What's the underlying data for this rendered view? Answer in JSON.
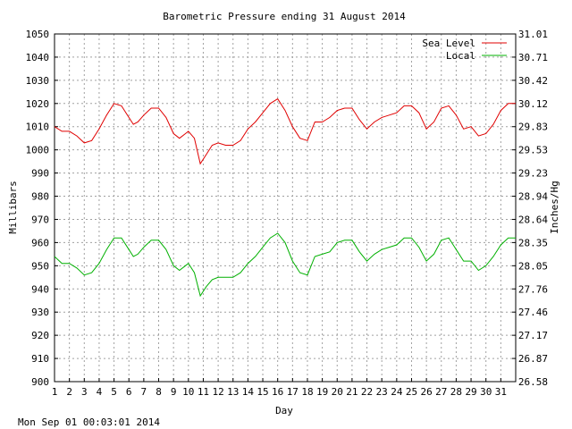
{
  "chart_data": {
    "type": "line",
    "title": "Barometric Pressure ending 31 August 2014",
    "xlabel": "Day",
    "ylabel": "Millibars",
    "y2label": "Inches/Hg",
    "xlim": [
      1,
      32
    ],
    "ylim": [
      900,
      1050
    ],
    "x_ticks": [
      "1",
      "2",
      "3",
      "4",
      "5",
      "6",
      "7",
      "8",
      "9",
      "10",
      "11",
      "12",
      "13",
      "14",
      "15",
      "16",
      "17",
      "18",
      "19",
      "20",
      "21",
      "22",
      "23",
      "24",
      "25",
      "26",
      "27",
      "28",
      "29",
      "30",
      "31"
    ],
    "y_ticks": [
      "900",
      "910",
      "920",
      "930",
      "940",
      "950",
      "960",
      "970",
      "980",
      "990",
      "1000",
      "1010",
      "1020",
      "1030",
      "1040",
      "1050"
    ],
    "y2_ticks": [
      "26.58",
      "26.87",
      "27.17",
      "27.46",
      "27.76",
      "28.05",
      "28.35",
      "28.64",
      "28.94",
      "29.23",
      "29.53",
      "29.83",
      "30.12",
      "30.42",
      "30.71",
      "31.01"
    ],
    "grid": true,
    "legend_position": "top-right",
    "series": [
      {
        "name": "Sea Level",
        "color": "#e00000",
        "points": [
          [
            1.0,
            1010
          ],
          [
            1.5,
            1008
          ],
          [
            2.0,
            1008
          ],
          [
            2.5,
            1006
          ],
          [
            3.0,
            1003
          ],
          [
            3.5,
            1004
          ],
          [
            4.0,
            1009
          ],
          [
            4.5,
            1015
          ],
          [
            5.0,
            1020
          ],
          [
            5.5,
            1019
          ],
          [
            6.0,
            1014
          ],
          [
            6.3,
            1011
          ],
          [
            6.6,
            1012
          ],
          [
            7.0,
            1015
          ],
          [
            7.5,
            1018
          ],
          [
            8.0,
            1018
          ],
          [
            8.5,
            1014
          ],
          [
            9.0,
            1007
          ],
          [
            9.4,
            1005
          ],
          [
            9.8,
            1007
          ],
          [
            10.0,
            1008
          ],
          [
            10.4,
            1005
          ],
          [
            10.8,
            994
          ],
          [
            11.2,
            998
          ],
          [
            11.6,
            1002
          ],
          [
            12.0,
            1003
          ],
          [
            12.5,
            1002
          ],
          [
            13.0,
            1002
          ],
          [
            13.5,
            1004
          ],
          [
            14.0,
            1009
          ],
          [
            14.5,
            1012
          ],
          [
            15.0,
            1016
          ],
          [
            15.5,
            1020
          ],
          [
            16.0,
            1022
          ],
          [
            16.5,
            1017
          ],
          [
            17.0,
            1010
          ],
          [
            17.5,
            1005
          ],
          [
            18.0,
            1004
          ],
          [
            18.5,
            1012
          ],
          [
            19.0,
            1012
          ],
          [
            19.5,
            1014
          ],
          [
            20.0,
            1017
          ],
          [
            20.5,
            1018
          ],
          [
            21.0,
            1018
          ],
          [
            21.5,
            1013
          ],
          [
            22.0,
            1009
          ],
          [
            22.5,
            1012
          ],
          [
            23.0,
            1014
          ],
          [
            23.5,
            1015
          ],
          [
            24.0,
            1016
          ],
          [
            24.5,
            1019
          ],
          [
            25.0,
            1019
          ],
          [
            25.5,
            1016
          ],
          [
            26.0,
            1009
          ],
          [
            26.5,
            1012
          ],
          [
            27.0,
            1018
          ],
          [
            27.5,
            1019
          ],
          [
            28.0,
            1015
          ],
          [
            28.5,
            1009
          ],
          [
            29.0,
            1010
          ],
          [
            29.5,
            1006
          ],
          [
            30.0,
            1007
          ],
          [
            30.5,
            1011
          ],
          [
            31.0,
            1017
          ],
          [
            31.5,
            1020
          ],
          [
            32.0,
            1020
          ]
        ]
      },
      {
        "name": "Local",
        "color": "#00b000",
        "points": [
          [
            1.0,
            954
          ],
          [
            1.5,
            951
          ],
          [
            2.0,
            951
          ],
          [
            2.5,
            949
          ],
          [
            3.0,
            946
          ],
          [
            3.5,
            947
          ],
          [
            4.0,
            951
          ],
          [
            4.5,
            957
          ],
          [
            5.0,
            962
          ],
          [
            5.5,
            962
          ],
          [
            6.0,
            957
          ],
          [
            6.3,
            954
          ],
          [
            6.6,
            955
          ],
          [
            7.0,
            958
          ],
          [
            7.5,
            961
          ],
          [
            8.0,
            961
          ],
          [
            8.5,
            957
          ],
          [
            9.0,
            950
          ],
          [
            9.4,
            948
          ],
          [
            9.8,
            950
          ],
          [
            10.0,
            951
          ],
          [
            10.4,
            947
          ],
          [
            10.8,
            937
          ],
          [
            11.2,
            941
          ],
          [
            11.6,
            944
          ],
          [
            12.0,
            945
          ],
          [
            12.5,
            945
          ],
          [
            13.0,
            945
          ],
          [
            13.5,
            947
          ],
          [
            14.0,
            951
          ],
          [
            14.5,
            954
          ],
          [
            15.0,
            958
          ],
          [
            15.5,
            962
          ],
          [
            16.0,
            964
          ],
          [
            16.5,
            960
          ],
          [
            17.0,
            952
          ],
          [
            17.5,
            947
          ],
          [
            18.0,
            946
          ],
          [
            18.5,
            954
          ],
          [
            19.0,
            955
          ],
          [
            19.5,
            956
          ],
          [
            20.0,
            960
          ],
          [
            20.5,
            961
          ],
          [
            21.0,
            961
          ],
          [
            21.5,
            956
          ],
          [
            22.0,
            952
          ],
          [
            22.5,
            955
          ],
          [
            23.0,
            957
          ],
          [
            23.5,
            958
          ],
          [
            24.0,
            959
          ],
          [
            24.5,
            962
          ],
          [
            25.0,
            962
          ],
          [
            25.5,
            958
          ],
          [
            26.0,
            952
          ],
          [
            26.5,
            955
          ],
          [
            27.0,
            961
          ],
          [
            27.5,
            962
          ],
          [
            28.0,
            957
          ],
          [
            28.5,
            952
          ],
          [
            29.0,
            952
          ],
          [
            29.5,
            948
          ],
          [
            30.0,
            950
          ],
          [
            30.5,
            954
          ],
          [
            31.0,
            959
          ],
          [
            31.5,
            962
          ],
          [
            32.0,
            962
          ]
        ]
      }
    ]
  },
  "footer": {
    "timestamp": "Mon Sep 01 00:03:01 2014"
  }
}
